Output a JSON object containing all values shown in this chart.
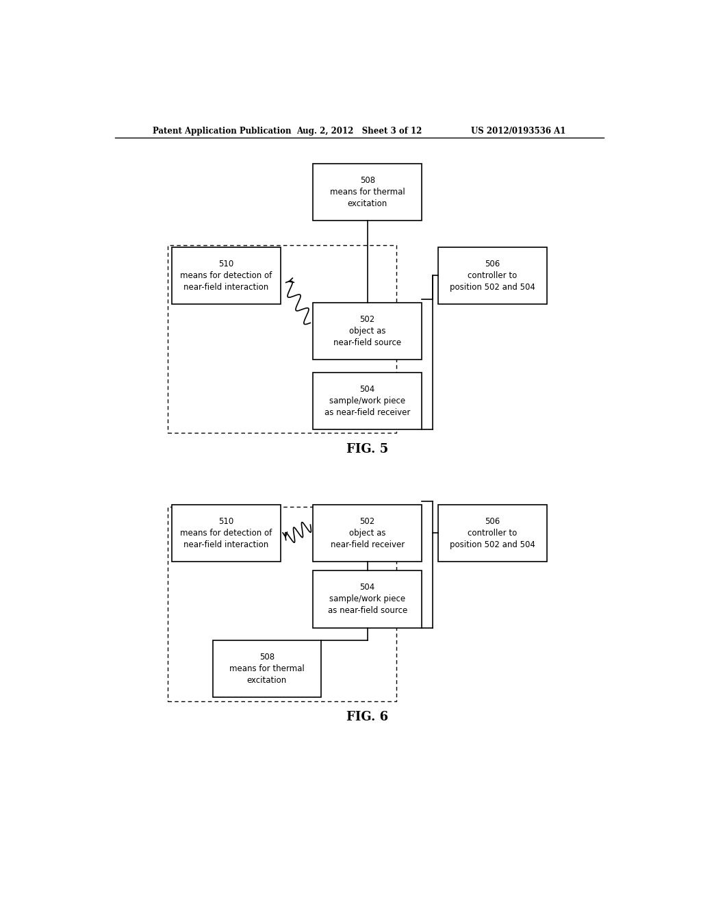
{
  "header_left": "Patent Application Publication",
  "header_mid": "Aug. 2, 2012   Sheet 3 of 12",
  "header_right": "US 2012/0193536 A1",
  "fig5_label": "FIG. 5",
  "fig6_label": "FIG. 6",
  "bg_color": "#ffffff"
}
